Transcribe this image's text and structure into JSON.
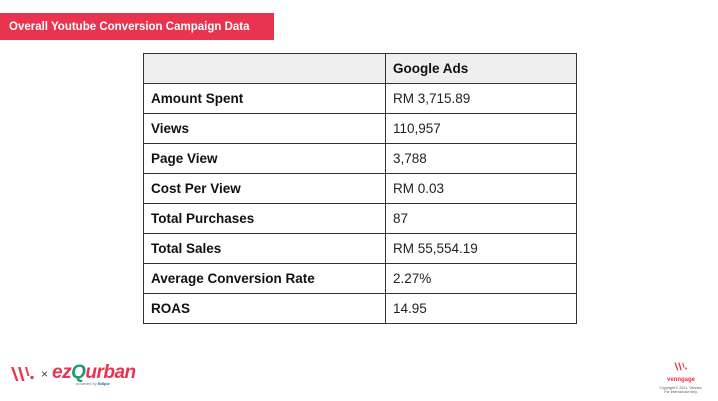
{
  "header": {
    "title": "Overall Youtube Conversion Campaign Data"
  },
  "table": {
    "columns": [
      "",
      "Google Ads"
    ],
    "rows": [
      {
        "metric": "Amount Spent",
        "value": "RM 3,715.89"
      },
      {
        "metric": "Views",
        "value": "110,957"
      },
      {
        "metric": "Page View",
        "value": "3,788"
      },
      {
        "metric": "Cost Per View",
        "value": "RM 0.03"
      },
      {
        "metric": "Total Purchases",
        "value": "87"
      },
      {
        "metric": "Total Sales",
        "value": "RM 55,554.19"
      },
      {
        "metric": "Average Conversion Rate",
        "value": "2.27%"
      },
      {
        "metric": "ROAS",
        "value": "14.95"
      }
    ]
  },
  "footer": {
    "times": "×",
    "brand_ez": "ez",
    "brand_q": "Q",
    "brand_rest": "urban",
    "brand_sub_prefix": "powered by",
    "brand_sub_name": "Billplz",
    "right_brand": "venngage",
    "copyright_line1": "Copyright © 2021. Venneo.",
    "copyright_line2": "For internal use only."
  },
  "colors": {
    "accent": "#e8344e",
    "header_bg": "#efefef",
    "ez_green": "#1f9a6b"
  }
}
